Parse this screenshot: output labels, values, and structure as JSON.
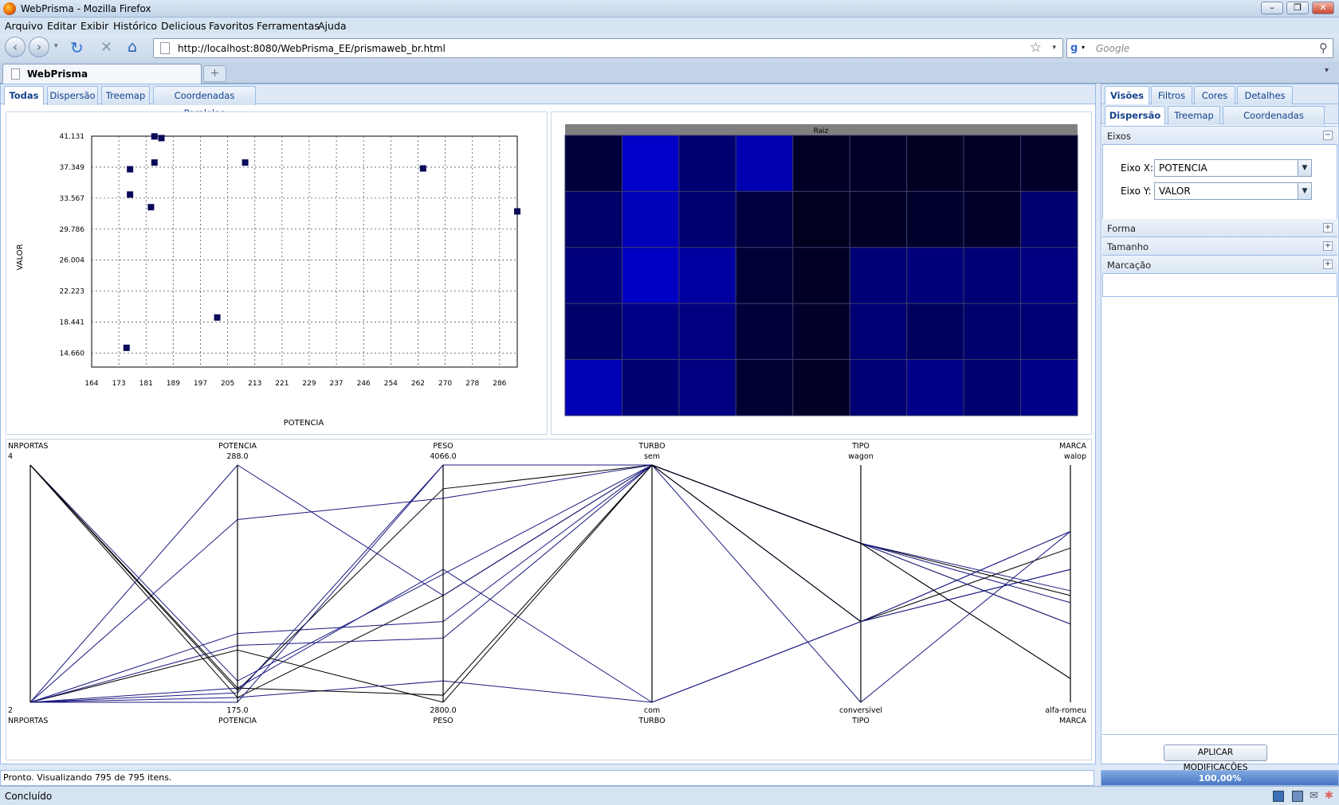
{
  "window": {
    "title": "WebPrisma - Mozilla Firefox"
  },
  "menu": [
    "Arquivo",
    "Editar",
    "Exibir",
    "Histórico",
    "Delicious",
    "Favoritos",
    "Ferramentas",
    "Ajuda"
  ],
  "nav": {
    "url": "http://localhost:8080/WebPrisma_EE/prismaweb_br.html",
    "search_placeholder": "Google"
  },
  "browser_tab": {
    "title": "WebPrisma"
  },
  "view_tabs": [
    "Todas",
    "Dispersão",
    "Treemap",
    "Coordenadas Paralelas"
  ],
  "right_panel": {
    "top_tabs": [
      "Visões",
      "Filtros",
      "Cores",
      "Detalhes"
    ],
    "sub_tabs": [
      "Dispersão",
      "Treemap",
      "Coordenadas Paralelas"
    ],
    "sections": {
      "eixos": "Eixos",
      "forma": "Forma",
      "tamanho": "Tamanho",
      "marcacao": "Marcação"
    },
    "eixo_x": {
      "label": "Eixo X:",
      "value": "POTENCIA"
    },
    "eixo_y": {
      "label": "Eixo Y:",
      "value": "VALOR"
    },
    "apply_button": "APLICAR MODIFICAÇÕES"
  },
  "status": {
    "message": "Pronto. Visualizando 795 de 795 itens.",
    "progress": "100,00%",
    "browser_status": "Concluído"
  },
  "colors": {
    "marker": "#0a0a5a",
    "treemap_root": "#808080",
    "pc_black": "#000000",
    "pc_blue": "#1a1a80"
  },
  "chart_data": [
    {
      "type": "scatter",
      "xlabel": "POTENCIA",
      "ylabel": "VALOR",
      "x_ticks": [
        "164",
        "173",
        "181",
        "189",
        "197",
        "205",
        "213",
        "221",
        "229",
        "237",
        "246",
        "254",
        "262",
        "270",
        "278",
        "286"
      ],
      "y_ticks": [
        "41.131",
        "37.349",
        "33.567",
        "29.786",
        "26.004",
        "22.223",
        "18.441",
        "14.660"
      ],
      "xlim": [
        164,
        286
      ],
      "ylim": [
        14.66,
        41.131
      ],
      "grid": true,
      "points": [
        {
          "x": 182,
          "y": 41.1
        },
        {
          "x": 184,
          "y": 40.9
        },
        {
          "x": 182,
          "y": 38.0
        },
        {
          "x": 175,
          "y": 37.2
        },
        {
          "x": 208,
          "y": 38.0
        },
        {
          "x": 259,
          "y": 37.3
        },
        {
          "x": 175,
          "y": 34.2
        },
        {
          "x": 181,
          "y": 32.7
        },
        {
          "x": 286,
          "y": 32.2
        },
        {
          "x": 200,
          "y": 19.6
        },
        {
          "x": 174,
          "y": 16.0
        }
      ]
    },
    {
      "type": "treemap",
      "root_label": "Raiz",
      "columns": [
        [
          "#00003d",
          "#00006a",
          "#00007c",
          "#00006a",
          "#0000b4"
        ],
        [
          "#0000c8",
          "#0000b8",
          "#0000c4",
          "#000086",
          "#000072"
        ],
        [
          "#000072",
          "#000072",
          "#0000a0",
          "#000080",
          "#000080"
        ],
        [
          "#0000b0",
          "#000040",
          "#000036",
          "#00003b",
          "#000033"
        ],
        [
          "#000026",
          "#00001f",
          "#000026",
          "#00002a",
          "#000026"
        ],
        [
          "#00002a",
          "#000026",
          "#000076",
          "#000074",
          "#000074"
        ],
        [
          "#000020",
          "#00002c",
          "#00007a",
          "#000060",
          "#000088"
        ],
        [
          "#000022",
          "#00002a",
          "#000074",
          "#00006e",
          "#000070"
        ],
        [
          "#00002a",
          "#000070",
          "#000080",
          "#000074",
          "#000088"
        ]
      ]
    },
    {
      "type": "parallel_coordinates",
      "axes": [
        {
          "name": "NRPORTAS",
          "max": "4",
          "min": "2"
        },
        {
          "name": "POTENCIA",
          "max": "288.0",
          "min": "175.0"
        },
        {
          "name": "PESO",
          "max": "4066.0",
          "min": "2800.0"
        },
        {
          "name": "TURBO",
          "max": "sem",
          "min": "com"
        },
        {
          "name": "TIPO",
          "max": "wagon",
          "min": "conversivel"
        },
        {
          "name": "MARCA",
          "max": "walop",
          "min": "alfa-romeu"
        }
      ],
      "lines": [
        {
          "v": [
            1,
            0.02,
            0.45,
            1,
            0.67,
            0.33
          ],
          "c": "pc_black"
        },
        {
          "v": [
            1,
            0.05,
            0.9,
            1,
            0.67,
            0.45
          ],
          "c": "pc_black"
        },
        {
          "v": [
            1,
            0.09,
            0.54,
            1,
            0.67,
            0.42
          ],
          "c": "pc_blue"
        },
        {
          "v": [
            0,
            1,
            0.45,
            1,
            0.67,
            0.1
          ],
          "c": "pc_blue"
        },
        {
          "v": [
            0,
            0.77,
            0.86,
            1,
            0.34,
            0.72
          ],
          "c": "pc_blue"
        },
        {
          "v": [
            0,
            0.04,
            1,
            1,
            0.34,
            0.56
          ],
          "c": "pc_blue"
        },
        {
          "v": [
            0,
            0.22,
            0,
            1,
            0.34,
            0.65
          ],
          "c": "pc_black"
        },
        {
          "v": [
            0,
            0.29,
            0.34,
            1,
            0.67,
            0.33
          ],
          "c": "pc_blue"
        },
        {
          "v": [
            0,
            0.24,
            0.27,
            1,
            0.67,
            0.47
          ],
          "c": "pc_blue"
        },
        {
          "v": [
            0,
            0.02,
            0.09,
            0,
            0.34,
            0.72
          ],
          "c": "pc_blue"
        },
        {
          "v": [
            0,
            0,
            1,
            1,
            0,
            0.72
          ],
          "c": "pc_blue"
        },
        {
          "v": [
            0,
            0.06,
            0.56,
            0,
            0.34,
            0.56
          ],
          "c": "pc_blue"
        },
        {
          "v": [
            1,
            0.06,
            0.03,
            1,
            0.67,
            0.1
          ],
          "c": "pc_black"
        }
      ]
    }
  ]
}
